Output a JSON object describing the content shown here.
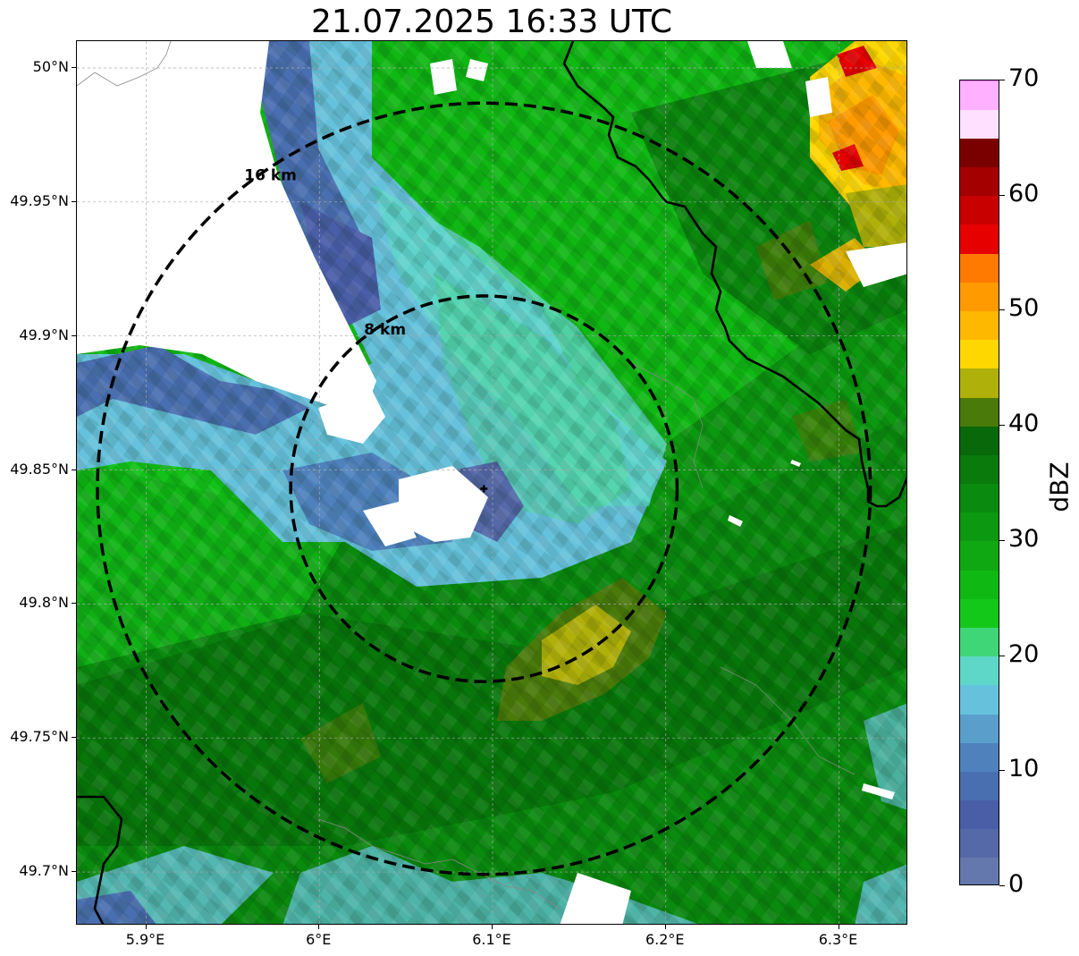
{
  "title": "21.07.2025 16:33 UTC",
  "map": {
    "lon_range": [
      5.86,
      6.34
    ],
    "lat_range": [
      49.68,
      50.01
    ],
    "center": {
      "lon": 6.095,
      "lat": 49.843
    },
    "rings": [
      {
        "label": "8 km",
        "radius_km": 8
      },
      {
        "label": "16 km",
        "radius_km": 16
      }
    ],
    "lat_ticks": [
      {
        "value": 50.0,
        "label": "50°N"
      },
      {
        "value": 49.95,
        "label": "49.95°N"
      },
      {
        "value": 49.9,
        "label": "49.9°N"
      },
      {
        "value": 49.85,
        "label": "49.85°N"
      },
      {
        "value": 49.8,
        "label": "49.8°N"
      },
      {
        "value": 49.75,
        "label": "49.75°N"
      },
      {
        "value": 49.7,
        "label": "49.7°N"
      }
    ],
    "lon_ticks": [
      {
        "value": 5.9,
        "label": "5.9°E"
      },
      {
        "value": 6.0,
        "label": "6°E"
      },
      {
        "value": 6.1,
        "label": "6.1°E"
      },
      {
        "value": 6.2,
        "label": "6.2°E"
      },
      {
        "value": 6.3,
        "label": "6.3°E"
      }
    ]
  },
  "colorbar": {
    "label": "dBZ",
    "ticks": [
      {
        "value": 0,
        "label": "0"
      },
      {
        "value": 10,
        "label": "10"
      },
      {
        "value": 20,
        "label": "20"
      },
      {
        "value": 30,
        "label": "30"
      },
      {
        "value": 40,
        "label": "40"
      },
      {
        "value": 50,
        "label": "50"
      },
      {
        "value": 60,
        "label": "60"
      },
      {
        "value": 70,
        "label": "70"
      }
    ],
    "min": 0,
    "max": 70,
    "step": 2.5,
    "colors": [
      "#6478ad",
      "#5568a8",
      "#4a5ea8",
      "#4a6fb0",
      "#4f82bd",
      "#5a9fcb",
      "#66c2dc",
      "#5fd7c8",
      "#3fd677",
      "#14c81a",
      "#10b814",
      "#0fa812",
      "#0c9810",
      "#0a8a0e",
      "#0a7a0c",
      "#08680a",
      "#4a7a0a",
      "#b0b00a",
      "#ffd700",
      "#ffb800",
      "#ff9a00",
      "#ff7a00",
      "#e60000",
      "#c80000",
      "#a40000",
      "#7a0000",
      "#ffe0ff",
      "#ffb0ff",
      "#ff7aff",
      "#f033f0"
    ]
  }
}
